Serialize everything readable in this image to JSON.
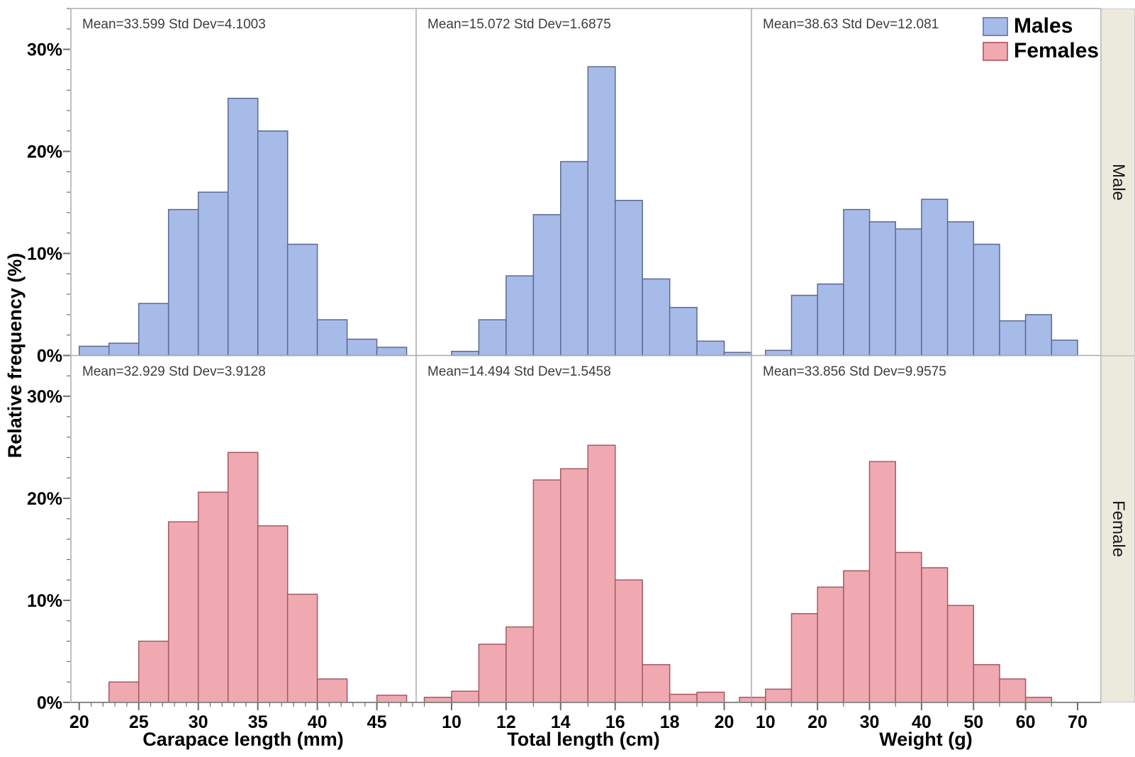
{
  "chart_data": {
    "type": "bar",
    "subtype": "histogram-grid",
    "ylabel": "Relative frequency (%)",
    "y_ticks": [
      "0%",
      "10%",
      "20%",
      "30%"
    ],
    "y_tick_values": [
      0,
      10,
      20,
      30
    ],
    "ylim": [
      0,
      34
    ],
    "y_minor_step": 2,
    "grid": "off",
    "legend": {
      "position": "top-right",
      "entries": [
        {
          "label": "Males",
          "fill": "#A7BBE9",
          "stroke": "#7487B7"
        },
        {
          "label": "Females",
          "fill": "#F0A9B1",
          "stroke": "#BC6A75"
        }
      ]
    },
    "bar_colors": {
      "male_fill": "#A7BBE9",
      "male_stroke": "#5C6A8E",
      "female_fill": "#F0A9B1",
      "female_stroke": "#A15A64"
    },
    "rows": [
      {
        "label": "Male"
      },
      {
        "label": "Female"
      }
    ],
    "columns": [
      {
        "xlabel": "Carapace length (mm)",
        "x_ticks": [
          20,
          25,
          30,
          35,
          40,
          45
        ],
        "xlim": [
          19.3,
          48.3
        ],
        "minor_step": 1
      },
      {
        "xlabel": "Total length (cm)",
        "x_ticks": [
          10,
          12,
          14,
          16,
          18,
          20
        ],
        "xlim": [
          8.7,
          21.0
        ],
        "minor_step": 1
      },
      {
        "xlabel": "Weight (g)",
        "x_ticks": [
          10,
          20,
          30,
          40,
          50,
          60,
          70
        ],
        "xlim": [
          7.3,
          74.5
        ],
        "minor_step": 5
      }
    ],
    "panels": [
      {
        "row_index": 0,
        "col_index": 0,
        "row": "Male",
        "column": "Carapace length (mm)",
        "stats": "Mean=33.599 Std Dev=4.1003",
        "bin_start": 20,
        "bin_width": 2.5,
        "values": [
          0.9,
          1.2,
          5.1,
          14.3,
          16.0,
          25.2,
          22.0,
          10.9,
          3.5,
          1.6,
          0.8
        ]
      },
      {
        "row_index": 0,
        "col_index": 1,
        "row": "Male",
        "column": "Total length (cm)",
        "stats": "Mean=15.072 Std Dev=1.6875",
        "bin_start": 10,
        "bin_width": 1,
        "values": [
          0.4,
          3.5,
          7.8,
          13.8,
          19.0,
          28.3,
          15.2,
          7.5,
          4.7,
          1.4,
          0.3
        ]
      },
      {
        "row_index": 0,
        "col_index": 2,
        "row": "Male",
        "column": "Weight (g)",
        "stats": "Mean=38.63 Std Dev=12.081",
        "bin_start": 10,
        "bin_width": 5,
        "values": [
          0.5,
          5.9,
          7.0,
          14.3,
          13.1,
          12.4,
          15.3,
          13.1,
          10.9,
          3.4,
          4.0,
          1.5
        ]
      },
      {
        "row_index": 1,
        "col_index": 0,
        "row": "Female",
        "column": "Carapace length (mm)",
        "stats": "Mean=32.929 Std Dev=3.9128",
        "bin_start": 22.5,
        "bin_width": 2.5,
        "values": [
          2.0,
          6.0,
          17.7,
          20.6,
          24.5,
          17.3,
          10.6,
          2.3,
          0,
          0.7
        ]
      },
      {
        "row_index": 1,
        "col_index": 1,
        "row": "Female",
        "column": "Total length (cm)",
        "stats": "Mean=14.494 Std Dev=1.5458",
        "bin_start": 9,
        "bin_width": 1,
        "values": [
          0.5,
          1.1,
          5.7,
          7.4,
          21.8,
          22.9,
          25.2,
          12.0,
          3.7,
          0.8,
          1.0
        ]
      },
      {
        "row_index": 1,
        "col_index": 2,
        "row": "Female",
        "column": "Weight (g)",
        "stats": "Mean=33.856 Std Dev=9.9575",
        "bin_start": 5,
        "bin_width": 5,
        "values": [
          0.5,
          1.3,
          8.7,
          11.3,
          12.9,
          23.6,
          14.7,
          13.2,
          9.5,
          3.7,
          2.3,
          0.5
        ]
      }
    ]
  }
}
